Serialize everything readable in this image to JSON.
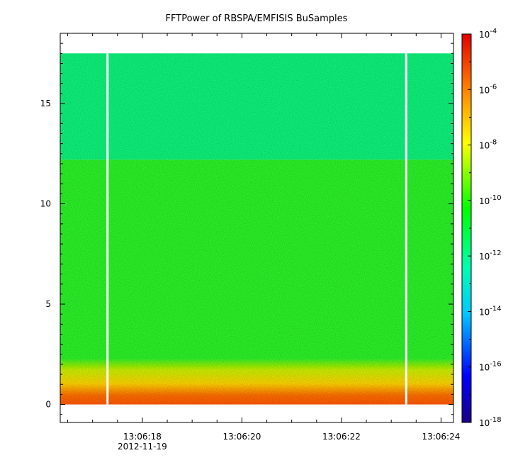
{
  "chart_data": {
    "type": "heatmap",
    "title": "FFTPower of RBSPA/EMFISIS  BuSamples",
    "xlabel": "",
    "ylabel": "",
    "x_ticks": [
      "13:06:18",
      "13:06:20",
      "13:06:22",
      "13:06:24"
    ],
    "x_date_label": "2012-11-19",
    "x_tick_values_seconds": [
      18,
      20,
      22,
      24
    ],
    "xlim_seconds": [
      16.35,
      24.25
    ],
    "y_ticks": [
      0,
      5,
      10,
      15
    ],
    "ylim": [
      -0.9,
      18.5
    ],
    "data_y_range": [
      0,
      17.5
    ],
    "colorbar": {
      "scale": "log",
      "range": [
        1e-18,
        0.0001
      ],
      "tick_labels": [
        {
          "base": "10",
          "exp": "-4"
        },
        {
          "base": "10",
          "exp": "-6"
        },
        {
          "base": "10",
          "exp": "-8"
        },
        {
          "base": "10",
          "exp": "-10"
        },
        {
          "base": "10",
          "exp": "-12"
        },
        {
          "base": "10",
          "exp": "-14"
        },
        {
          "base": "10",
          "exp": "-16"
        },
        {
          "base": "10",
          "exp": "-18"
        }
      ],
      "colormap": [
        "#1a0080",
        "#0000ff",
        "#00c8ff",
        "#00ffb0",
        "#00ff00",
        "#ffff00",
        "#ff8000",
        "#e00000"
      ]
    },
    "gaps_seconds": [
      17.3,
      23.3
    ],
    "bands": [
      {
        "y_range": [
          12.2,
          17.5
        ],
        "level": "1e-12",
        "color": "#17f27c"
      },
      {
        "y_range": [
          2.0,
          12.2
        ],
        "level": "1e-11",
        "color": "#2ef22c"
      },
      {
        "y_range": [
          1.3,
          2.0
        ],
        "level": "1e-9",
        "color": "#c8f000"
      },
      {
        "y_range": [
          0.8,
          1.3
        ],
        "level": "1e-8",
        "color": "#ffd400"
      },
      {
        "y_range": [
          0.0,
          0.8
        ],
        "level": "1e-6",
        "color": "#ff7000"
      }
    ]
  }
}
